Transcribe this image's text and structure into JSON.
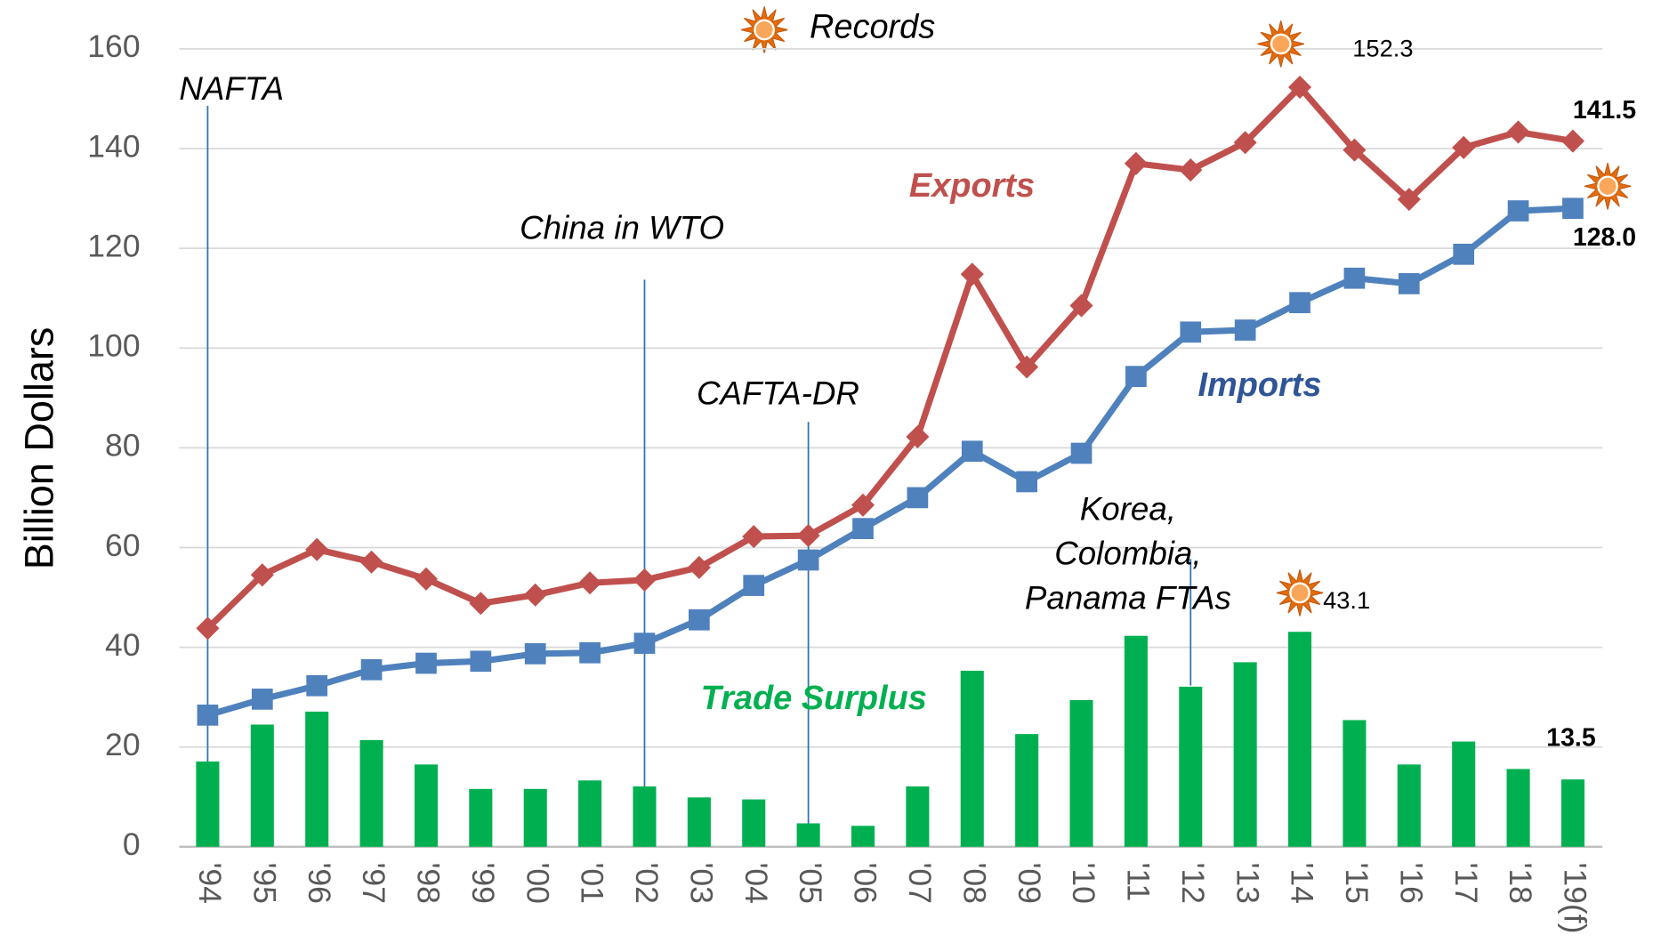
{
  "chart_data": {
    "type": "combo",
    "y_label": "Billion Dollars",
    "legend_note": "Records",
    "categories": [
      "'94",
      "'95",
      "'96",
      "'97",
      "'98",
      "'99",
      "'00",
      "'01",
      "'02",
      "'03",
      "'04",
      "'05",
      "'06",
      "'07",
      "'08",
      "'09",
      "'10",
      "'11",
      "'12",
      "'13",
      "'14",
      "'15",
      "'16",
      "'17",
      "'18",
      "'19(f)"
    ],
    "series": [
      {
        "name": "Exports",
        "type": "line",
        "marker": "diamond",
        "color": "#c0504d",
        "values": [
          43.8,
          54.5,
          59.6,
          57.1,
          53.7,
          48.8,
          50.5,
          52.9,
          53.5,
          56.0,
          62.2,
          62.4,
          68.5,
          82.2,
          114.8,
          96.2,
          108.5,
          137.0,
          135.7,
          141.2,
          152.3,
          139.7,
          129.8,
          140.2,
          143.3,
          141.5
        ],
        "value_labels": [
          null,
          null,
          null,
          null,
          null,
          null,
          null,
          null,
          null,
          null,
          null,
          null,
          null,
          null,
          null,
          null,
          null,
          null,
          null,
          null,
          "152.3",
          null,
          null,
          null,
          null,
          "141.5"
        ]
      },
      {
        "name": "Imports",
        "type": "line",
        "marker": "square",
        "color": "#4f81bd",
        "values": [
          26.4,
          29.6,
          32.3,
          35.5,
          36.8,
          37.2,
          38.7,
          38.9,
          40.8,
          45.5,
          52.4,
          57.5,
          63.8,
          70.0,
          79.3,
          73.2,
          78.9,
          94.3,
          103.2,
          103.6,
          109.1,
          114.0,
          112.9,
          118.8,
          127.5,
          128.0
        ],
        "value_labels": [
          null,
          null,
          null,
          null,
          null,
          null,
          null,
          null,
          null,
          null,
          null,
          null,
          null,
          null,
          null,
          null,
          null,
          null,
          null,
          null,
          null,
          null,
          null,
          null,
          null,
          "128.0"
        ]
      },
      {
        "name": "Trade Surplus",
        "type": "bar",
        "color": "#00b050",
        "values": [
          17.1,
          24.5,
          27.1,
          21.4,
          16.5,
          11.6,
          11.6,
          13.3,
          12.1,
          9.9,
          9.5,
          4.7,
          4.2,
          12.1,
          35.3,
          22.6,
          29.4,
          42.3,
          32.1,
          37.0,
          43.1,
          25.4,
          16.5,
          21.1,
          15.6,
          13.5
        ],
        "value_labels": [
          null,
          null,
          null,
          null,
          null,
          null,
          null,
          null,
          null,
          null,
          null,
          null,
          null,
          null,
          null,
          null,
          null,
          null,
          null,
          null,
          "43.1",
          null,
          null,
          null,
          null,
          "13.5"
        ]
      }
    ],
    "annotations": [
      {
        "category": "'94",
        "lines": [
          "NAFTA"
        ]
      },
      {
        "category": "'02",
        "lines": [
          "China in WTO"
        ]
      },
      {
        "category": "'05",
        "lines": [
          "CAFTA-DR"
        ]
      },
      {
        "category": "'12",
        "lines": [
          "Korea,",
          "Colombia,",
          "Panama FTAs"
        ]
      }
    ],
    "ylim": [
      0,
      160
    ],
    "yticks": [
      0,
      20,
      40,
      60,
      80,
      100,
      120,
      140,
      160
    ],
    "grid": true
  }
}
